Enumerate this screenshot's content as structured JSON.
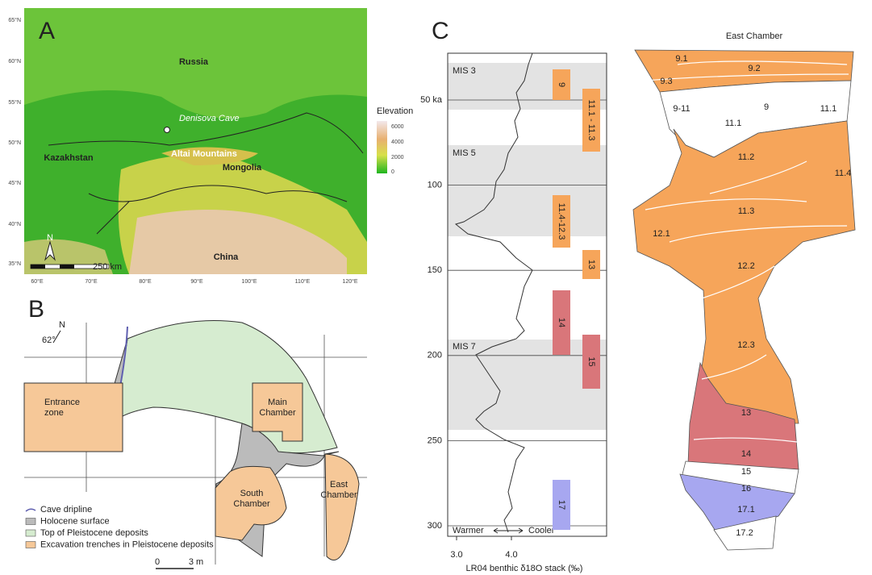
{
  "panel_a": {
    "letter": "A",
    "lat_labels": [
      "65°N",
      "60°N",
      "55°N",
      "50°N",
      "45°N",
      "40°N",
      "35°N"
    ],
    "lon_labels": [
      "60°E",
      "70°E",
      "80°E",
      "90°E",
      "100°E",
      "110°E",
      "120°E"
    ],
    "countries": [
      "Russia",
      "Kazakhstan",
      "Mongolia",
      "China"
    ],
    "site": "Denisova Cave",
    "mountains": "Altai Mountains",
    "legend_title": "Elevation",
    "legend_ticks": [
      "6000",
      "4000",
      "2000",
      "0"
    ],
    "north": "N",
    "scale": "250 km"
  },
  "panel_b": {
    "letter": "B",
    "north": "N",
    "angle": "62°",
    "zones": [
      "Entrance zone",
      "Main Chamber",
      "South Chamber",
      "East Chamber"
    ],
    "legend": [
      "Cave dripline",
      "Holocene surface",
      "Top of Pleistocene deposits",
      "Excavation trenches in Pleistocene deposits"
    ],
    "scale": [
      "0",
      "3 m"
    ]
  },
  "panel_c": {
    "letter": "C",
    "yticks": [
      {
        "value": 50,
        "label": "50 ka"
      },
      100,
      150,
      200,
      250,
      300
    ],
    "xticks": [
      {
        "value": 3,
        "label": "3.0"
      },
      {
        "value": 4,
        "label": "4.0"
      }
    ],
    "mis": [
      "MIS 3",
      "MIS 5",
      "MIS 7"
    ],
    "layers": [
      "9",
      "11.1 - 11.3",
      "11.4-12.3",
      "13",
      "14",
      "15",
      "17"
    ],
    "warmer": "Warmer",
    "cooler": "Cooler",
    "xlabel": "LR04 benthic δ18O stack (‰)"
  },
  "panel_d": {
    "title": "East Chamber",
    "layers": [
      "9.1",
      "9.2",
      "9.3",
      "9-11",
      "9",
      "11.1",
      "11.1",
      "11.2",
      "11.4",
      "11.3",
      "12.1",
      "12.2",
      "12.3",
      "13",
      "14",
      "15",
      "16",
      "17.1",
      "17.2"
    ]
  }
}
